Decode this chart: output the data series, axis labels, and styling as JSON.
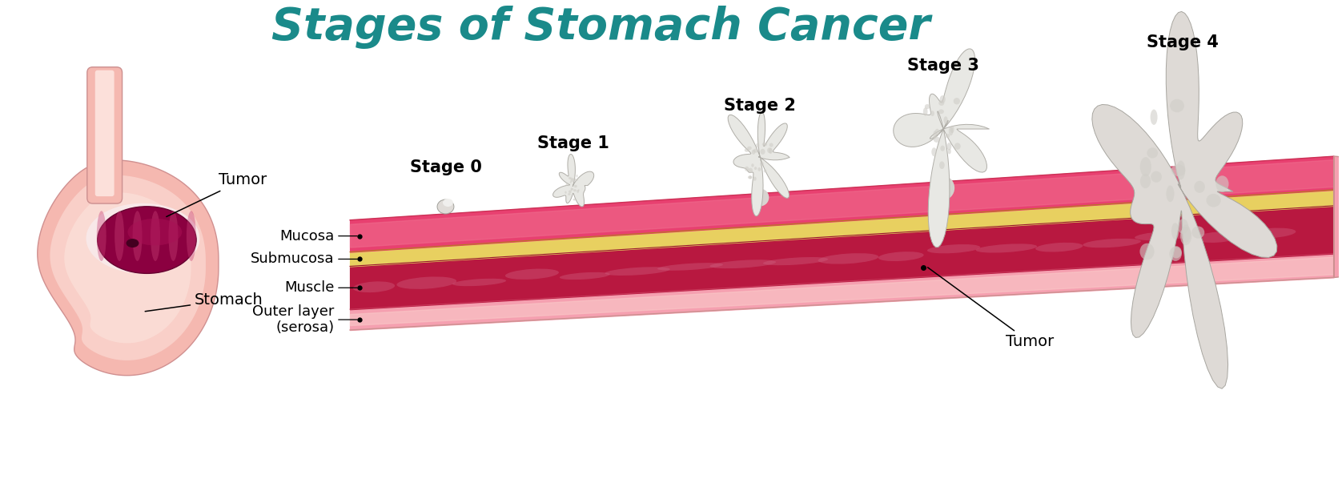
{
  "title": "Stages of Stomach Cancer",
  "title_color": "#1a8a8a",
  "title_fontsize": 40,
  "title_fontweight": "bold",
  "bg_color": "#ffffff",
  "label_fontsize": 13,
  "stage_fontsize": 15,
  "stage_fontweight": "bold",
  "layer_labels": [
    "Mucosa",
    "Submucosa",
    "Muscle",
    "Outer layer\n(serosa)"
  ],
  "stage_labels": [
    "Stage 0",
    "Stage 1",
    "Stage 2",
    "Stage 3",
    "Stage 4"
  ],
  "tumor_label": "Tumor",
  "stomach_tumor_label": "Tumor",
  "stomach_label": "Stomach",
  "colors": {
    "stomach_outer": "#f5b8b0",
    "stomach_inner": "#f9cfc8",
    "stomach_highlight": "#fce8e0",
    "tumor_dark": "#8b0040",
    "tumor_mid": "#aa1055",
    "tumor_light": "#c84075",
    "esoph_color": "#f5b8b0",
    "mucosa_color": "#e84070",
    "mucosa_top_color": "#f07090",
    "submucosa_color": "#e8d060",
    "muscle_color": "#b81840",
    "muscle_light": "#d06080",
    "outer_color": "#f5a0b0",
    "outer_light": "#fac8c8",
    "polyp_main": "#e8e4e0",
    "polyp_shadow": "#c8c4c0",
    "polyp_highlight": "#f8f8f8",
    "stage4_color": "#e0dcd8"
  }
}
